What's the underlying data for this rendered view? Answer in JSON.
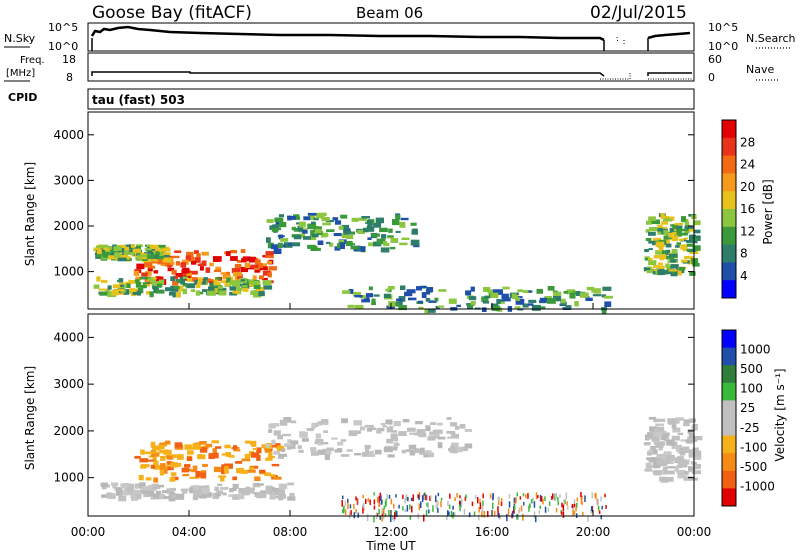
{
  "header": {
    "station": "Goose Bay (fitACF)",
    "beam": "Beam 06",
    "date": "02/Jul/2015"
  },
  "top_panels": {
    "nsky_label": "N.Sky",
    "nsky_ticks": [
      "10^5",
      "10^0"
    ],
    "nsearch_label": "N.Search",
    "nsearch_ticks": [
      "10^5",
      "10^0"
    ],
    "freq_label_1": "Freq.",
    "freq_label_2": "[MHz]",
    "freq_ticks": [
      "18",
      "8"
    ],
    "nave_label": "Nave",
    "nave_ticks": [
      "60",
      "0"
    ],
    "cpid_label": "CPID",
    "cpid_value": "tau (fast) 503"
  },
  "chart_data": [
    {
      "type": "heatmap",
      "name": "power-panel",
      "ylabel": "Slant Range [km]",
      "y_ticks": [
        "1000",
        "2000",
        "3000",
        "4000"
      ],
      "ylim": [
        180,
        4500
      ],
      "colorbar_label": "Power [dB]",
      "colorbar_ticks": [
        "4",
        "8",
        "12",
        "16",
        "20",
        "24",
        "28"
      ],
      "colorbar_colors": [
        "#0000ff",
        "#1f4fa8",
        "#2e7d6b",
        "#3a9a3a",
        "#8cc63f",
        "#e8c21a",
        "#f59a1a",
        "#f26a14",
        "#e8321a",
        "#e00000"
      ],
      "data_regions": [
        {
          "t0": 1.8,
          "t1": 7.2,
          "r0": 800,
          "r1": 1500,
          "level": "very high"
        },
        {
          "t0": 0.2,
          "t1": 7.0,
          "r0": 550,
          "r1": 900,
          "level": "medium"
        },
        {
          "t0": 0.2,
          "t1": 3.0,
          "r0": 1300,
          "r1": 1600,
          "level": "medium"
        },
        {
          "t0": 7.0,
          "t1": 13.0,
          "r0": 1500,
          "r1": 2300,
          "level": "low"
        },
        {
          "t0": 10.0,
          "t1": 20.5,
          "r0": 180,
          "r1": 700,
          "level": "low"
        },
        {
          "t0": 22.0,
          "t1": 24.0,
          "r0": 1000,
          "r1": 2300,
          "level": "medium"
        }
      ]
    },
    {
      "type": "heatmap",
      "name": "velocity-panel",
      "ylabel": "Slant Range [km]",
      "y_ticks": [
        "1000",
        "2000",
        "3000",
        "4000"
      ],
      "ylim": [
        180,
        4500
      ],
      "xlabel": "Time UT",
      "x_ticks": [
        "00:00",
        "04:00",
        "08:00",
        "12:00",
        "16:00",
        "20:00",
        "00:00"
      ],
      "colorbar_label": "Velocity [m s⁻¹]",
      "colorbar_ticks": [
        "1000",
        "500",
        "100",
        "25",
        "-25",
        "-100",
        "-500",
        "-1000"
      ],
      "colorbar_colors": [
        "#0000ff",
        "#1f4fa8",
        "#2e7d3a",
        "#3ab83a",
        "#c0c0c0",
        "#c0c0c0",
        "#f5b01a",
        "#f58a14",
        "#f26014",
        "#e00000"
      ],
      "data_regions": [
        {
          "t0": 1.8,
          "t1": 7.5,
          "r0": 1000,
          "r1": 1800,
          "level": "toward (orange)"
        },
        {
          "t0": 0.3,
          "t1": 8.0,
          "r0": 600,
          "r1": 900,
          "level": "near zero (grey)"
        },
        {
          "t0": 7.0,
          "t1": 15.0,
          "r0": 1500,
          "r1": 2300,
          "level": "near zero (grey)"
        },
        {
          "t0": 10.0,
          "t1": 20.5,
          "r0": 180,
          "r1": 700,
          "level": "mixed"
        },
        {
          "t0": 22.0,
          "t1": 24.0,
          "r0": 1000,
          "r1": 2300,
          "level": "near zero (grey)"
        }
      ]
    }
  ]
}
